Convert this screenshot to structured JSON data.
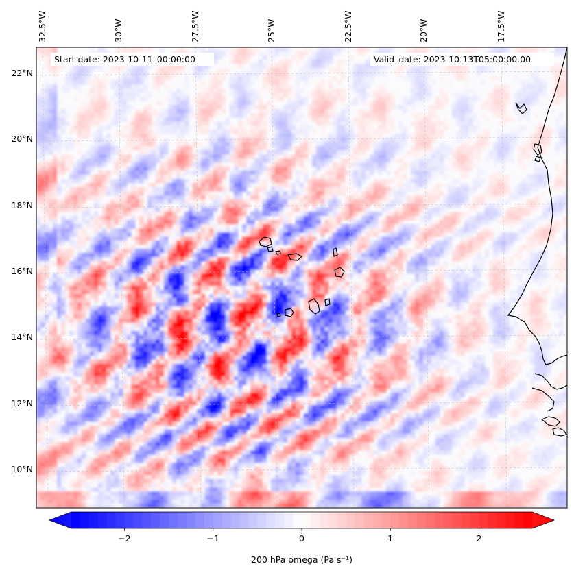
{
  "map": {
    "start_date_label": "Start date: 2023-10-11_00:00:00",
    "valid_date_label": "Valid_date: 2023-10-13T05:00:00.00",
    "lon_ticks": [
      "32.5°W",
      "30°W",
      "27.5°W",
      "25°W",
      "22.5°W",
      "20°W",
      "17.5°W"
    ],
    "lat_ticks": [
      "22°N",
      "20°N",
      "18°N",
      "16°N",
      "14°N",
      "12°N",
      "10°N"
    ],
    "gridlines": "dashed light gray",
    "coastline_color": "#000000",
    "field": "200 hPa omega"
  },
  "colorbar": {
    "label": "200 hPa omega (Pa s⁻¹)",
    "tick_labels": [
      "−2",
      "−1",
      "0",
      "1",
      "2"
    ],
    "tick_values": [
      -2,
      -1,
      0,
      1,
      2
    ],
    "range": [
      -2.6,
      2.6
    ],
    "extend": "both",
    "colormap": "bwr",
    "color_low": "#0000ff",
    "color_mid": "#ffffff",
    "color_high": "#ff0000"
  }
}
